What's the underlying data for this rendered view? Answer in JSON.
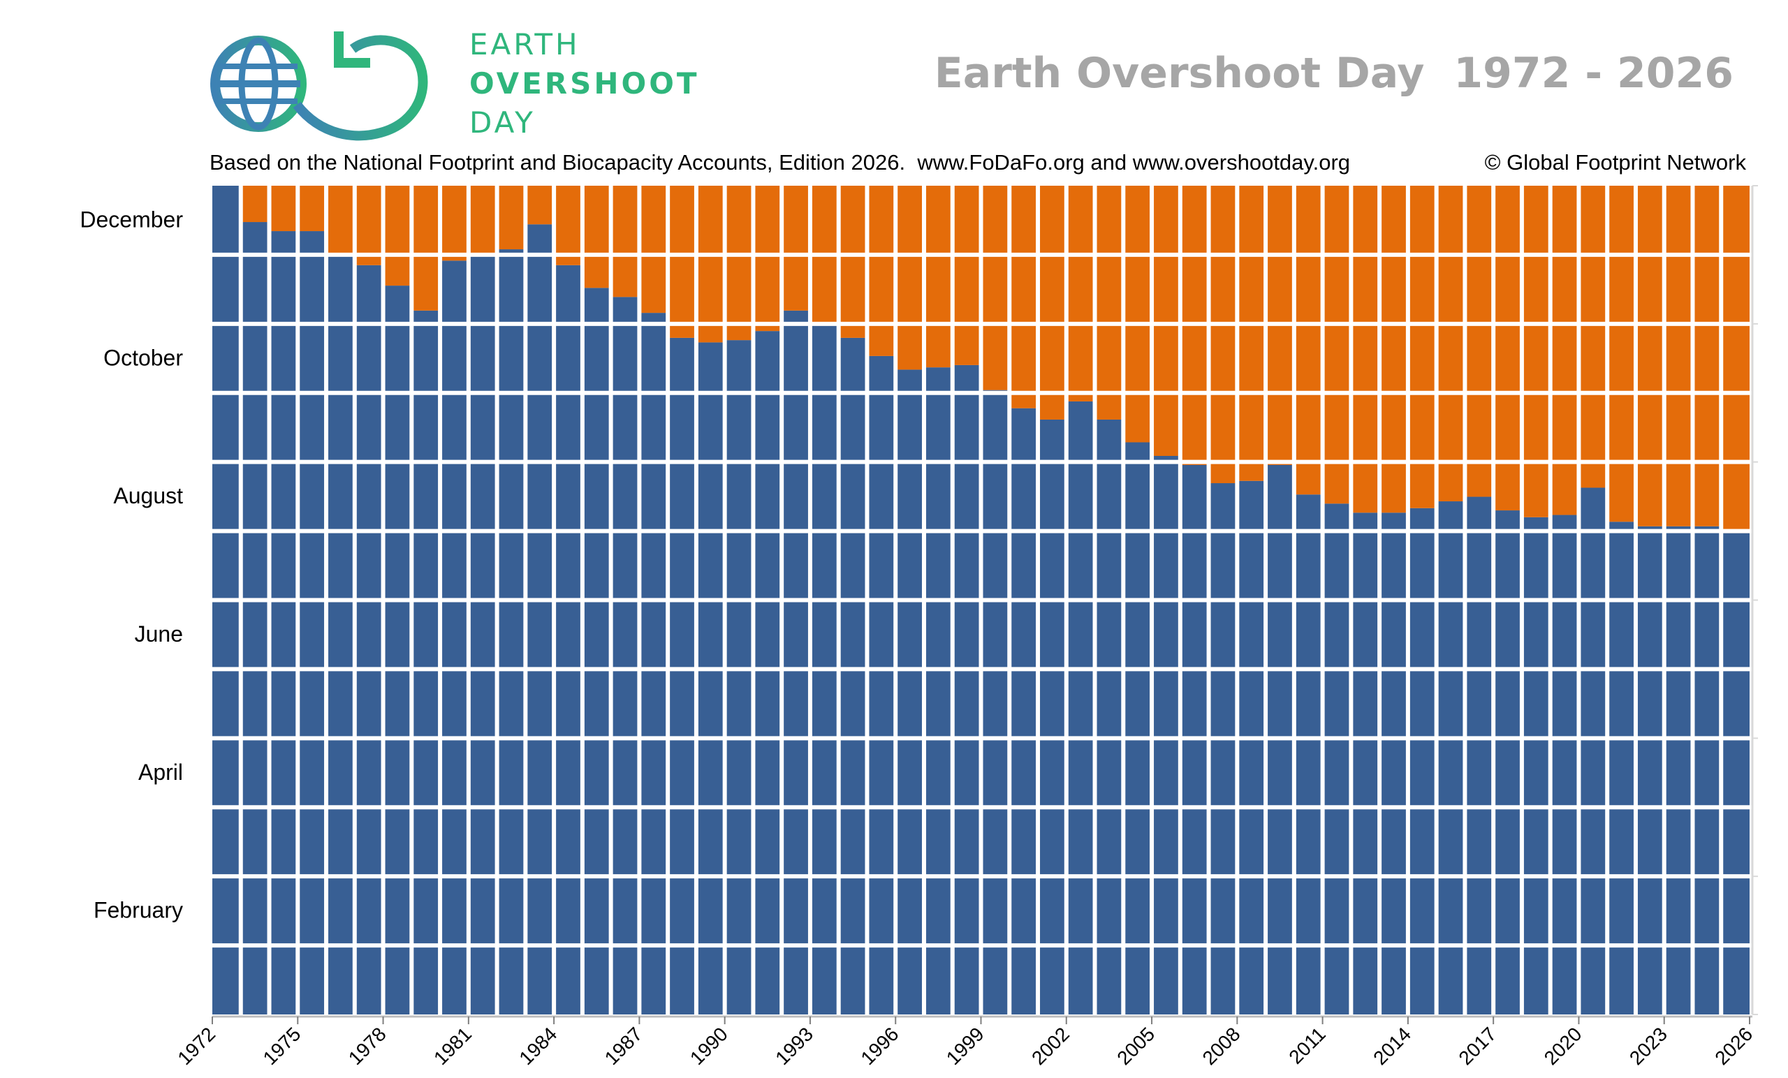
{
  "logo": {
    "line1": "EARTH",
    "line2": "OVERSHOOT",
    "line3": "DAY",
    "icon": "globe-infinity-arrow-icon",
    "gradient_start": "#3d82b4",
    "gradient_end": "#2fb67c"
  },
  "header": {
    "title": "Earth Overshoot Day  1972 - 2026",
    "subtitle_left": "Based on the National Footprint and Biocapacity Accounts, Edition 2026.  www.FoDaFo.org and www.overshootday.org",
    "subtitle_right": "© Global Footprint Network"
  },
  "colors": {
    "before_overshoot": "#385f94",
    "after_overshoot": "#e46c0a",
    "grid": "#ffffff",
    "title": "#a6a6a6"
  },
  "chart_data": {
    "type": "bar",
    "stacked": true,
    "x": [
      1972,
      1973,
      1974,
      1975,
      1976,
      1977,
      1978,
      1979,
      1980,
      1981,
      1982,
      1983,
      1984,
      1985,
      1986,
      1987,
      1988,
      1989,
      1990,
      1991,
      1992,
      1993,
      1994,
      1995,
      1996,
      1997,
      1998,
      1999,
      2000,
      2001,
      2002,
      2003,
      2004,
      2005,
      2006,
      2007,
      2008,
      2009,
      2010,
      2011,
      2012,
      2013,
      2014,
      2015,
      2016,
      2017,
      2018,
      2019,
      2020,
      2021,
      2022,
      2023,
      2024,
      2025
    ],
    "overshoot_day_of_year": [
      365,
      349,
      345,
      345,
      335,
      330,
      321,
      310,
      332,
      334,
      337,
      348,
      330,
      320,
      316,
      309,
      298,
      296,
      297,
      301,
      310,
      304,
      298,
      290,
      284,
      285,
      286,
      275,
      267,
      262,
      270,
      262,
      252,
      246,
      242,
      234,
      235,
      242,
      229,
      225,
      221,
      221,
      223,
      226,
      228,
      222,
      219,
      220,
      232,
      217,
      215,
      215,
      215,
      212
    ],
    "series": [],
    "y_ticks": [
      "December",
      "October",
      "August",
      "June",
      "April",
      "February"
    ],
    "x_tick_labels": [
      "1972",
      "1975",
      "1978",
      "1981",
      "1984",
      "1987",
      "1990",
      "1993",
      "1996",
      "1999",
      "2002",
      "2005",
      "2008",
      "2011",
      "2014",
      "2017",
      "2020",
      "2023",
      "2026"
    ],
    "xlim": [
      1972,
      2026
    ],
    "ylim_day_of_year": [
      1,
      365
    ]
  }
}
